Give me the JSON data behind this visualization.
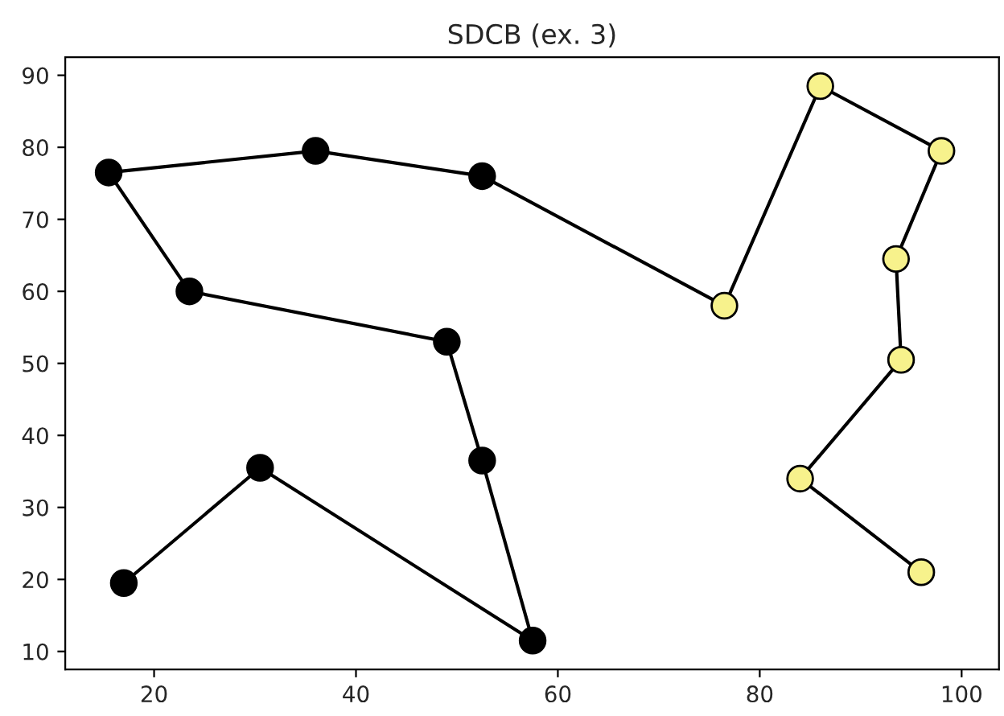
{
  "chart_data": {
    "type": "line",
    "title": "SDCB (ex. 3)",
    "series": [
      {
        "color": "#000000",
        "x": [
          17,
          30.5,
          57.5,
          52.5,
          49,
          23.5,
          15.5,
          36,
          52.5,
          76.5,
          86,
          98,
          93.5,
          94,
          84,
          96
        ],
        "values": [
          19.5,
          35.5,
          11.5,
          36.5,
          53,
          60,
          76.5,
          79.5,
          76,
          58,
          88.5,
          79.5,
          64.5,
          50.5,
          34,
          21
        ],
        "colors": [
          "#000000",
          "#000000",
          "#000000",
          "#000000",
          "#000000",
          "#000000",
          "#000000",
          "#000000",
          "#000000",
          "#f7f28c",
          "#f7f28c",
          "#f7f28c",
          "#f7f28c",
          "#f7f28c",
          "#f7f28c",
          "#f7f28c"
        ]
      }
    ],
    "marker": "circle",
    "line_style": "solid",
    "grid": false,
    "xlim": [
      11.2,
      103.7
    ],
    "xticks": [
      20,
      40,
      60,
      80,
      100
    ],
    "ylim": [
      7.5,
      92.5
    ],
    "yticks": [
      10,
      20,
      30,
      40,
      50,
      60,
      70,
      80,
      90
    ]
  }
}
